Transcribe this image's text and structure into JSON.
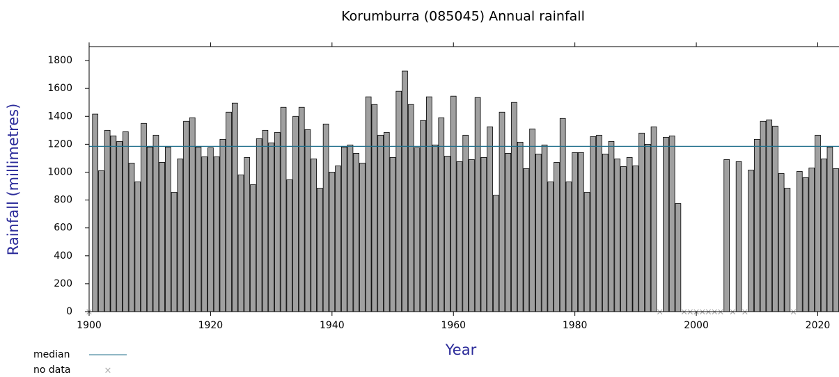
{
  "chart_data": {
    "type": "bar",
    "title": "Korumburra (085045) Annual rainfall",
    "x_label": "Year",
    "y_label": "Rainfall (millimetres)",
    "x": [
      1900,
      1901,
      1902,
      1903,
      1904,
      1905,
      1906,
      1907,
      1908,
      1909,
      1910,
      1911,
      1912,
      1913,
      1914,
      1915,
      1916,
      1917,
      1918,
      1919,
      1920,
      1921,
      1922,
      1923,
      1924,
      1925,
      1926,
      1927,
      1928,
      1929,
      1930,
      1931,
      1932,
      1933,
      1934,
      1935,
      1936,
      1937,
      1938,
      1939,
      1940,
      1941,
      1942,
      1943,
      1944,
      1945,
      1946,
      1947,
      1948,
      1949,
      1950,
      1951,
      1952,
      1953,
      1954,
      1955,
      1956,
      1957,
      1958,
      1959,
      1960,
      1961,
      1962,
      1963,
      1964,
      1965,
      1966,
      1967,
      1968,
      1969,
      1970,
      1971,
      1972,
      1973,
      1974,
      1975,
      1976,
      1977,
      1978,
      1979,
      1980,
      1981,
      1982,
      1983,
      1984,
      1985,
      1986,
      1987,
      1988,
      1989,
      1990,
      1991,
      1992,
      1993,
      1994,
      1995,
      1996,
      1997,
      1998,
      1999,
      2000,
      2001,
      2002,
      2003,
      2004,
      2005,
      2006,
      2007,
      2008,
      2009,
      2010,
      2011,
      2012,
      2013,
      2014,
      2015,
      2016,
      2017,
      2018,
      2019,
      2020,
      2021,
      2022,
      2023
    ],
    "values": [
      null,
      1416,
      1010,
      1300,
      1260,
      1220,
      1290,
      1065,
      930,
      1350,
      1180,
      1265,
      1070,
      1180,
      855,
      1095,
      1365,
      1390,
      1180,
      1110,
      1175,
      1110,
      1235,
      1430,
      1495,
      980,
      1105,
      910,
      1240,
      1300,
      1210,
      1285,
      1465,
      945,
      1400,
      1465,
      1305,
      1095,
      885,
      1345,
      1000,
      1045,
      1180,
      1195,
      1135,
      1065,
      1540,
      1485,
      1265,
      1285,
      1105,
      1580,
      1725,
      1485,
      1175,
      1370,
      1540,
      1195,
      1390,
      1115,
      1545,
      1075,
      1265,
      1090,
      1535,
      1105,
      1325,
      835,
      1430,
      1135,
      1500,
      1215,
      1025,
      1310,
      1130,
      1195,
      930,
      1070,
      1385,
      930,
      1140,
      1140,
      855,
      1255,
      1265,
      1130,
      1220,
      1095,
      1040,
      1105,
      1045,
      1280,
      1200,
      1325,
      null,
      1250,
      1260,
      775,
      null,
      null,
      null,
      null,
      null,
      null,
      null,
      1090,
      null,
      1075,
      null,
      1015,
      1235,
      1365,
      1375,
      1330,
      990,
      885,
      null,
      1005,
      960,
      1030,
      1265,
      1095,
      1180,
      1025
    ],
    "color": "#a0a0a0",
    "median": 1185,
    "median_color": "#1f6f8b",
    "legend": {
      "median": "median",
      "no_data": "no data"
    },
    "xlim": [
      1900,
      2023.5
    ],
    "xticks": [
      1900,
      1920,
      1940,
      1960,
      1980,
      2000,
      2020
    ],
    "ylim": [
      0,
      1900
    ],
    "yticks": [
      0,
      200,
      400,
      600,
      800,
      1000,
      1200,
      1400,
      1600,
      1800
    ]
  }
}
